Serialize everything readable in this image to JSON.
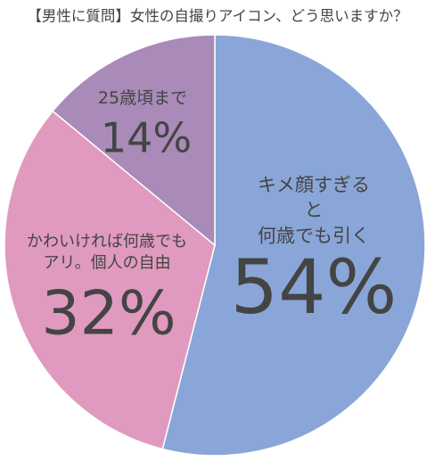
{
  "chart_data": {
    "type": "pie",
    "title": "【男性に質問】女性の自撮りアイコン、どう思いますか？",
    "categories": [
      "キメ顔すぎると\n何歳でも引く",
      "かわいければ何歳でも\nアリ。個人の自由",
      "25歳頃まで"
    ],
    "values": [
      54,
      32,
      14
    ],
    "value_labels": [
      "54%",
      "32%",
      "14%"
    ],
    "colors": [
      "#8aa6d8",
      "#e09abf",
      "#a98ab8"
    ]
  }
}
